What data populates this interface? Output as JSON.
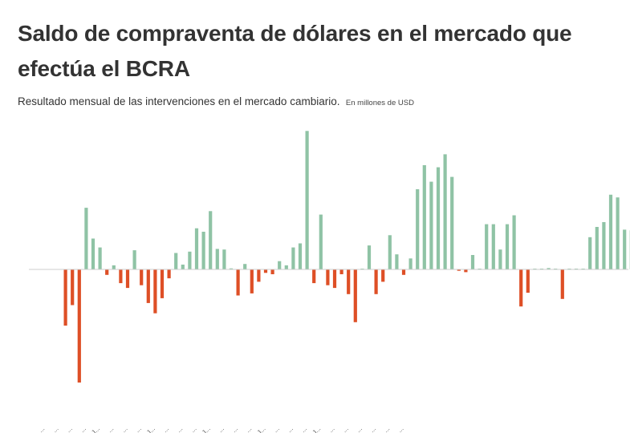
{
  "title": "Saldo de compraventa de dólares en el mercado que efectúa el BCRA",
  "subtitle": "Resultado mensual de las intervenciones en el mercado cambiario.",
  "unit_note": "En millones de USD",
  "colors": {
    "positive": "#8fc3a5",
    "negative": "#de4f26",
    "zero_line": "#cccccc",
    "tick_label": "#555555"
  },
  "chart_data": {
    "type": "bar",
    "title": "Saldo de compraventa de dólares en el mercado que efectúa el BCRA",
    "subtitle": "Resultado mensual de las intervenciones en el mercado cambiario.",
    "ylabel": "En millones de USD",
    "xlabel": "",
    "ylim": [
      -1650,
      2050
    ],
    "grid": false,
    "legend": "none",
    "x_tick_labels": [
      "...",
      "...",
      "...",
      "...",
      "J...",
      "...",
      "...",
      "...",
      "J...",
      "...",
      "...",
      "...",
      "J...",
      "...",
      "...",
      "...",
      "J...",
      "...",
      "...",
      "...",
      "J...",
      "...",
      "...",
      "...",
      "...",
      "...",
      "..."
    ],
    "values": [
      -820,
      -520,
      -1650,
      900,
      450,
      320,
      -80,
      60,
      -200,
      -270,
      280,
      -230,
      -490,
      -640,
      -420,
      -130,
      240,
      70,
      260,
      600,
      550,
      850,
      300,
      290,
      15,
      -380,
      80,
      -350,
      -180,
      -50,
      -70,
      120,
      60,
      320,
      380,
      2020,
      -200,
      800,
      -230,
      -270,
      -70,
      -360,
      -770,
      10,
      350,
      -360,
      -180,
      500,
      220,
      -80,
      160,
      1170,
      1520,
      1280,
      1490,
      1680,
      1350,
      -20,
      -40,
      210,
      10,
      660,
      660,
      290,
      660,
      790,
      -540,
      -340,
      10,
      10,
      20,
      10,
      -430,
      10,
      10,
      10,
      470,
      620,
      690,
      1090,
      1050,
      580,
      570
    ]
  }
}
